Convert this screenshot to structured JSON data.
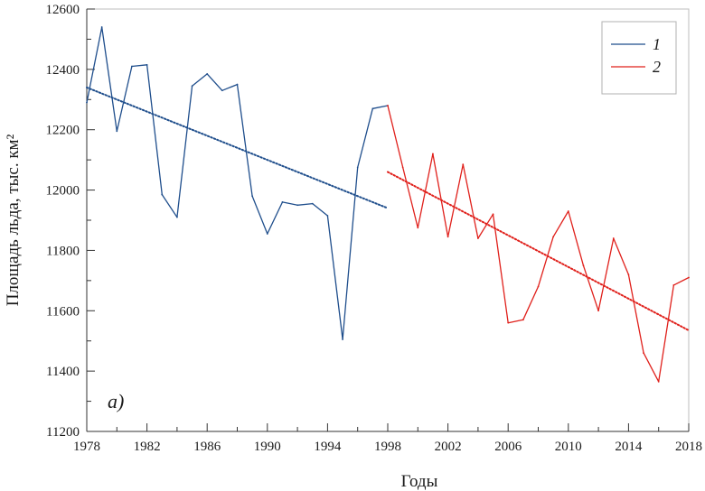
{
  "chart_data": {
    "type": "line",
    "title": "",
    "xlabel": "Годы",
    "ylabel": "Площадь льда, тыс. км²",
    "xlim": [
      1978,
      2018
    ],
    "ylim": [
      11200,
      12600
    ],
    "xticks": [
      1978,
      1982,
      1986,
      1990,
      1994,
      1998,
      2002,
      2006,
      2010,
      2014,
      2018
    ],
    "yticks": [
      11200,
      11400,
      11600,
      11800,
      12000,
      12200,
      12400,
      12600
    ],
    "xtick_labels": [
      "1978",
      "1982",
      "1986",
      "1990",
      "1994",
      "1998",
      "2002",
      "2006",
      "2010",
      "2014",
      "2018"
    ],
    "ytick_labels": [
      "11200",
      "11400",
      "11600",
      "11800",
      "12000",
      "12200",
      "12400",
      "12600"
    ],
    "grid": false,
    "legend_position": "top-right",
    "panel_label": "a)",
    "series": [
      {
        "name": "1",
        "color": "#1f4e8c",
        "x": [
          1978,
          1979,
          1980,
          1981,
          1982,
          1983,
          1984,
          1985,
          1986,
          1987,
          1988,
          1989,
          1990,
          1991,
          1992,
          1993,
          1994,
          1995,
          1996,
          1997,
          1998
        ],
        "values": [
          12290,
          12540,
          12195,
          12410,
          12415,
          11985,
          11910,
          12345,
          12385,
          12330,
          12350,
          11980,
          11855,
          11960,
          11950,
          11955,
          11915,
          11505,
          12075,
          12270,
          12280
        ]
      },
      {
        "name": "2",
        "color": "#e0201b",
        "x": [
          1998,
          1999,
          2000,
          2001,
          2002,
          2003,
          2004,
          2005,
          2006,
          2007,
          2008,
          2009,
          2010,
          2011,
          2012,
          2013,
          2014,
          2015,
          2016,
          2017,
          2018
        ],
        "values": [
          12280,
          12075,
          11875,
          12120,
          11845,
          12085,
          11840,
          11920,
          11560,
          11570,
          11680,
          11845,
          11930,
          11750,
          11600,
          11840,
          11720,
          11460,
          11365,
          11685,
          11710
        ]
      }
    ],
    "trends": [
      {
        "name": "trend-1",
        "color": "#1f4e8c",
        "x": [
          1978,
          1998
        ],
        "values": [
          12340,
          11940
        ]
      },
      {
        "name": "trend-2",
        "color": "#e0201b",
        "x": [
          1998,
          2018
        ],
        "values": [
          12060,
          11535
        ]
      }
    ]
  }
}
